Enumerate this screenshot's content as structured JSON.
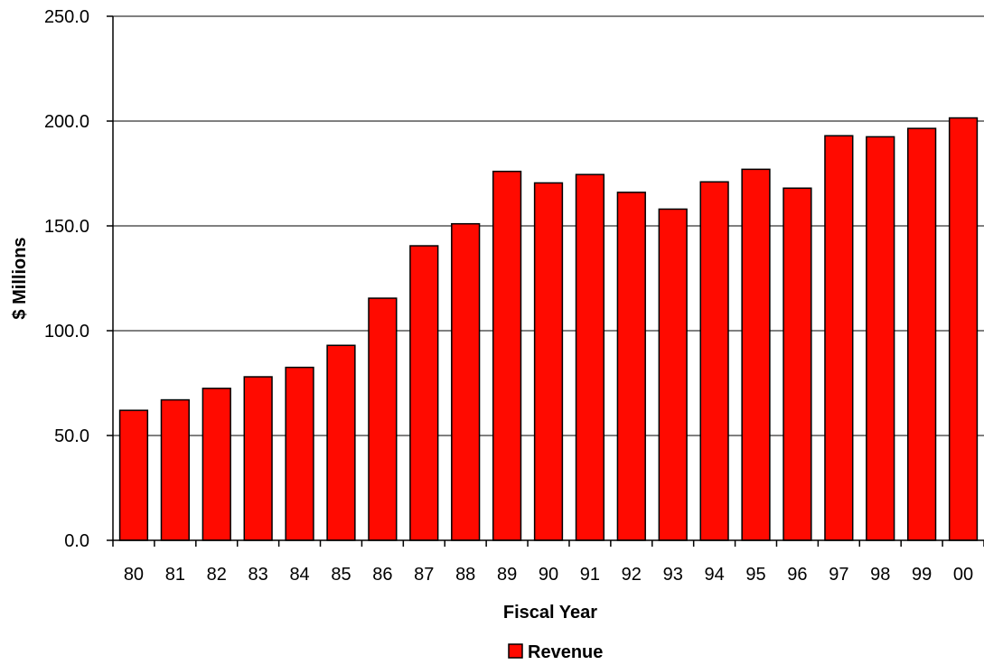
{
  "chart_data": {
    "type": "bar",
    "title": "",
    "xlabel": "Fiscal Year",
    "ylabel": "$ Millions",
    "ylim": [
      0,
      250
    ],
    "yticks": [
      "0.0",
      "50.0",
      "100.0",
      "150.0",
      "200.0",
      "250.0"
    ],
    "ytick_values": [
      0,
      50,
      100,
      150,
      200,
      250
    ],
    "grid": true,
    "legend_position": "bottom-center",
    "categories": [
      "80",
      "81",
      "82",
      "83",
      "84",
      "85",
      "86",
      "87",
      "88",
      "89",
      "90",
      "91",
      "92",
      "93",
      "94",
      "95",
      "96",
      "97",
      "98",
      "99",
      "00"
    ],
    "series": [
      {
        "name": "Revenue",
        "color": "#ff0a00",
        "values": [
          62.0,
          67.0,
          72.5,
          78.0,
          82.5,
          93.0,
          115.5,
          140.5,
          151.0,
          176.0,
          170.5,
          174.5,
          166.0,
          158.0,
          171.0,
          177.0,
          168.0,
          193.0,
          192.5,
          196.5,
          201.5
        ]
      }
    ]
  }
}
